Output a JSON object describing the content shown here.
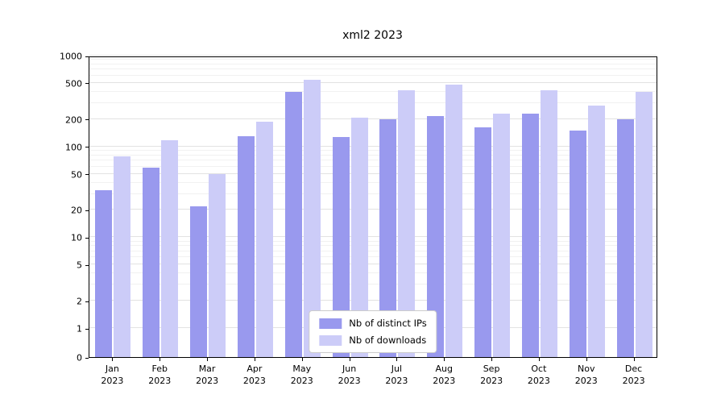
{
  "chart_data": {
    "type": "bar",
    "title": "xml2 2023",
    "xlabel": "",
    "ylabel": "",
    "yscale": "symlog",
    "grid": true,
    "legend_position": "bottom-center-inside",
    "yticks": [
      0,
      1,
      2,
      5,
      10,
      20,
      50,
      100,
      200,
      500,
      1000
    ],
    "ylim": [
      0,
      1000
    ],
    "categories": [
      "Jan 2023",
      "Feb 2023",
      "Mar 2023",
      "Apr 2023",
      "May 2023",
      "Jun 2023",
      "Jul 2023",
      "Aug 2023",
      "Sep 2023",
      "Oct 2023",
      "Nov 2023",
      "Dec 2023"
    ],
    "series": [
      {
        "name": "Nb of distinct IPs",
        "color": "#9999ee",
        "values": [
          33,
          58,
          22,
          130,
          400,
          127,
          200,
          216,
          162,
          228,
          150,
          200
        ]
      },
      {
        "name": "Nb of downloads",
        "color": "#ccccf8",
        "values": [
          78,
          118,
          50,
          188,
          545,
          208,
          415,
          478,
          228,
          415,
          280,
          400
        ]
      }
    ]
  },
  "colors": {
    "background": "#ffffff",
    "spine": "#000000",
    "grid_major": "#e2e2e2",
    "grid_minor": "#f1f1f1",
    "legend_border": "#cccccc"
  }
}
